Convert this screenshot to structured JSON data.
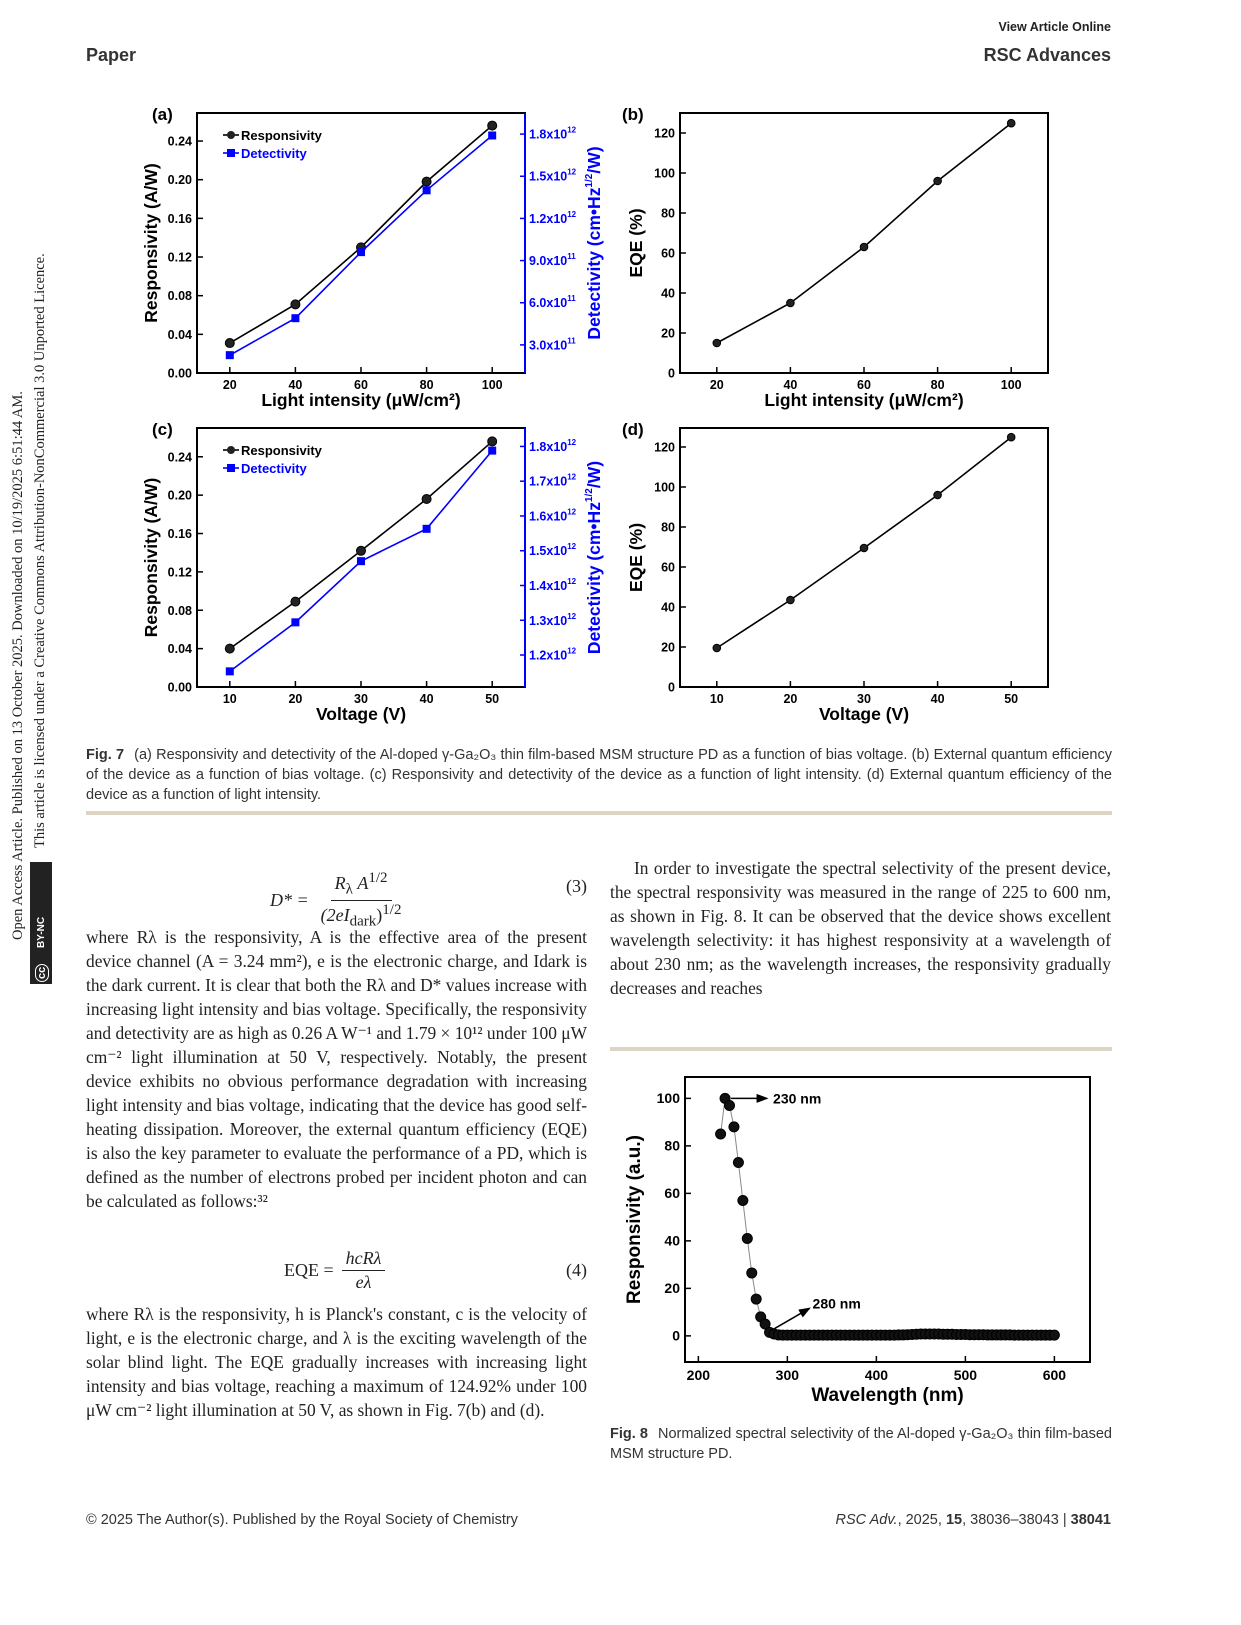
{
  "header": {
    "view_online": "View Article Online",
    "section": "Paper",
    "journal": "RSC Advances"
  },
  "sidebar": {
    "line1": "Open Access Article. Published on 13 October 2025. Downloaded on 10/19/2025 6:51:44 AM.",
    "line2": "This article is licensed under a Creative Commons Attribution-NonCommercial 3.0 Unported Licence.",
    "badge_cc": "cc",
    "badge_text": "BY-NC"
  },
  "colors": {
    "responsivity": "#000000",
    "detectivity": "#0000ff",
    "rule": "#dcd5c3"
  },
  "chart_data": [
    {
      "id": "a",
      "panel_label": "(a)",
      "type": "line",
      "x": [
        20,
        40,
        60,
        80,
        100
      ],
      "xlim": [
        10,
        110
      ],
      "xticks": [
        "20",
        "40",
        "60",
        "80",
        "100"
      ],
      "xtick_values": [
        20,
        40,
        60,
        80,
        100
      ],
      "xlabel": "Light intensity (μW/cm²)",
      "ylabel": "Responsivity (A/W)",
      "ylim": [
        0,
        0.269
      ],
      "yticks": [
        "0.00",
        "0.04",
        "0.08",
        "0.12",
        "0.16",
        "0.20",
        "0.24"
      ],
      "ytick_values": [
        0,
        0.04,
        0.08,
        0.12,
        0.16,
        0.2,
        0.24
      ],
      "y2label": {
        "pre": "Detectivity (cm•Hz",
        "sup": "1/2",
        "post": "/W)"
      },
      "y2lim": [
        100000000000.0,
        1950000000000.0
      ],
      "y2ticks": [
        {
          "base": "3.0x10",
          "exp": "11",
          "value": 300000000000.0
        },
        {
          "base": "6.0x10",
          "exp": "11",
          "value": 600000000000.0
        },
        {
          "base": "9.0x10",
          "exp": "11",
          "value": 900000000000.0
        },
        {
          "base": "1.2x10",
          "exp": "12",
          "value": 1200000000000.0
        },
        {
          "base": "1.5x10",
          "exp": "12",
          "value": 1500000000000.0
        },
        {
          "base": "1.8x10",
          "exp": "12",
          "value": 1800000000000.0
        }
      ],
      "legend": [
        "Responsivity",
        "Detectivity"
      ],
      "series": [
        {
          "name": "Responsivity",
          "axis": "left",
          "values": [
            0.031,
            0.071,
            0.13,
            0.198,
            0.256
          ]
        },
        {
          "name": "Detectivity",
          "axis": "right",
          "values": [
            227000000000.0,
            490000000000.0,
            960000000000.0,
            1400000000000.0,
            1790000000000.0
          ]
        }
      ]
    },
    {
      "id": "b",
      "panel_label": "(b)",
      "type": "line",
      "x": [
        20,
        40,
        60,
        80,
        100
      ],
      "xlim": [
        10,
        110
      ],
      "xticks": [
        "20",
        "40",
        "60",
        "80",
        "100"
      ],
      "xtick_values": [
        20,
        40,
        60,
        80,
        100
      ],
      "xlabel": "Light intensity (μW/cm²)",
      "ylabel": "EQE (%)",
      "ylim": [
        0,
        130
      ],
      "yticks": [
        "0",
        "20",
        "40",
        "60",
        "80",
        "100",
        "120"
      ],
      "ytick_values": [
        0,
        20,
        40,
        60,
        80,
        100,
        120
      ],
      "series": [
        {
          "name": "EQE",
          "axis": "left",
          "values": [
            15,
            35,
            63,
            96,
            124.9
          ]
        }
      ]
    },
    {
      "id": "c",
      "panel_label": "(c)",
      "type": "line",
      "x": [
        10,
        20,
        30,
        40,
        50
      ],
      "xlim": [
        5,
        55
      ],
      "xticks": [
        "10",
        "20",
        "30",
        "40",
        "50"
      ],
      "xtick_values": [
        10,
        20,
        30,
        40,
        50
      ],
      "xlabel": "Voltage (V)",
      "ylabel": "Responsivity (A/W)",
      "ylim": [
        0,
        0.27
      ],
      "yticks": [
        "0.00",
        "0.04",
        "0.08",
        "0.12",
        "0.16",
        "0.20",
        "0.24"
      ],
      "ytick_values": [
        0,
        0.04,
        0.08,
        0.12,
        0.16,
        0.2,
        0.24
      ],
      "y2label": {
        "pre": "Detectivity (cm•Hz",
        "sup": "1/2",
        "post": "/W)"
      },
      "y2lim": [
        1108000000000.0,
        1853000000000.0
      ],
      "y2ticks": [
        {
          "base": "1.2x10",
          "exp": "12",
          "value": 1200000000000.0
        },
        {
          "base": "1.3x10",
          "exp": "12",
          "value": 1300000000000.0
        },
        {
          "base": "1.4x10",
          "exp": "12",
          "value": 1400000000000.0
        },
        {
          "base": "1.5x10",
          "exp": "12",
          "value": 1500000000000.0
        },
        {
          "base": "1.6x10",
          "exp": "12",
          "value": 1600000000000.0
        },
        {
          "base": "1.7x10",
          "exp": "12",
          "value": 1700000000000.0
        },
        {
          "base": "1.8x10",
          "exp": "12",
          "value": 1800000000000.0
        }
      ],
      "legend": [
        "Responsivity",
        "Detectivity"
      ],
      "series": [
        {
          "name": "Responsivity",
          "axis": "left",
          "values": [
            0.04,
            0.089,
            0.142,
            0.196,
            0.256
          ]
        },
        {
          "name": "Detectivity",
          "axis": "right",
          "values": [
            1153000000000.0,
            1294000000000.0,
            1470000000000.0,
            1563000000000.0,
            1788000000000.0
          ]
        }
      ]
    },
    {
      "id": "d",
      "panel_label": "(d)",
      "type": "line",
      "x": [
        10,
        20,
        30,
        40,
        50
      ],
      "xlim": [
        5,
        55
      ],
      "xticks": [
        "10",
        "20",
        "30",
        "40",
        "50"
      ],
      "xtick_values": [
        10,
        20,
        30,
        40,
        50
      ],
      "xlabel": "Voltage (V)",
      "ylabel": "EQE (%)",
      "ylim": [
        0,
        129.5
      ],
      "yticks": [
        "0",
        "20",
        "40",
        "60",
        "80",
        "100",
        "120"
      ],
      "ytick_values": [
        0,
        20,
        40,
        60,
        80,
        100,
        120
      ],
      "series": [
        {
          "name": "EQE",
          "axis": "left",
          "values": [
            19.5,
            43.5,
            69.5,
            96,
            124.9
          ]
        }
      ]
    },
    {
      "id": "fig8",
      "type": "scatter",
      "xlabel": "Wavelength (nm)",
      "ylabel": "Responsivity (a.u.)",
      "xlim": [
        185,
        640
      ],
      "ylim": [
        -11,
        109
      ],
      "xticks": [
        "200",
        "300",
        "400",
        "500",
        "600"
      ],
      "xtick_values": [
        200,
        300,
        400,
        500,
        600
      ],
      "yticks": [
        "0",
        "20",
        "40",
        "60",
        "80",
        "100"
      ],
      "ytick_values": [
        0,
        20,
        40,
        60,
        80,
        100
      ],
      "annotations": [
        {
          "text": "230 nm",
          "x": 230,
          "y": 100
        },
        {
          "text": "280 nm",
          "x": 280,
          "y": 1.5
        }
      ],
      "x": [
        225,
        230,
        235,
        240,
        245,
        250,
        255,
        260,
        265,
        270,
        275,
        280,
        285,
        290,
        295,
        300,
        305,
        310,
        315,
        320,
        325,
        330,
        335,
        340,
        345,
        350,
        355,
        360,
        365,
        370,
        375,
        380,
        385,
        390,
        395,
        400,
        405,
        410,
        415,
        420,
        425,
        430,
        435,
        440,
        445,
        450,
        455,
        460,
        465,
        470,
        475,
        480,
        485,
        490,
        495,
        500,
        505,
        510,
        515,
        520,
        525,
        530,
        535,
        540,
        545,
        550,
        555,
        560,
        565,
        570,
        575,
        580,
        585,
        590,
        595,
        600
      ],
      "y": [
        85,
        100,
        97,
        88,
        73,
        57,
        41,
        26.5,
        15.5,
        8,
        5,
        1.5,
        0.8,
        0.4,
        0.3,
        0.3,
        0.3,
        0.3,
        0.3,
        0.3,
        0.3,
        0.3,
        0.3,
        0.3,
        0.3,
        0.3,
        0.3,
        0.3,
        0.3,
        0.3,
        0.3,
        0.3,
        0.3,
        0.3,
        0.3,
        0.3,
        0.3,
        0.3,
        0.3,
        0.3,
        0.4,
        0.4,
        0.5,
        0.6,
        0.7,
        0.8,
        0.8,
        0.8,
        0.8,
        0.8,
        0.7,
        0.7,
        0.7,
        0.6,
        0.6,
        0.6,
        0.5,
        0.5,
        0.5,
        0.5,
        0.4,
        0.4,
        0.4,
        0.4,
        0.4,
        0.4,
        0.3,
        0.3,
        0.3,
        0.3,
        0.3,
        0.3,
        0.3,
        0.3,
        0.3,
        0.3
      ]
    }
  ],
  "fig7_caption": {
    "label": "Fig. 7",
    "text": "(a) Responsivity and detectivity of the Al-doped γ-Ga₂O₃ thin film-based MSM structure PD as a function of bias voltage. (b) External quantum efficiency of the device as a function of bias voltage. (c) Responsivity and detectivity of the device as a function of light intensity. (d) External quantum efficiency of the device as a function of light intensity."
  },
  "equation3": {
    "lhs": "D* =",
    "num": "Rλ A^1/2",
    "num_main": "R",
    "num_sub": "λ",
    "num_a": " A",
    "num_sup": "1/2",
    "den_main": "(2eI",
    "den_sub": "dark",
    "den_close": ")",
    "den_sup": "1/2",
    "number": "(3)"
  },
  "paragraph1": "where Rλ is the responsivity, A is the effective area of the present device channel (A = 3.24 mm²), e is the electronic charge, and Idark is the dark current. It is clear that both the Rλ and D* values increase with increasing light intensity and bias voltage. Specifically, the responsivity and detectivity are as high as 0.26 A W⁻¹ and 1.79 × 10¹² under 100 μW cm⁻² light illumination at 50 V, respectively. Notably, the present device exhibits no obvious performance degradation with increasing light intensity and bias voltage, indicating that the device has good self-heating dissipation. Moreover, the external quantum efficiency (EQE) is also the key parameter to evaluate the performance of a PD, which is defined as the number of electrons probed per incident photon and can be calculated as follows:³²",
  "equation4": {
    "lhs": "EQE =",
    "num": "hcRλ",
    "den": "eλ",
    "number": "(4)"
  },
  "paragraph2": "where Rλ is the responsivity, h is Planck's constant, c is the velocity of light, e is the electronic charge, and λ is the exciting wavelength of the solar blind light. The EQE gradually increases with increasing light intensity and bias voltage, reaching a maximum of 124.92% under 100 μW cm⁻² light illumination at 50 V, as shown in Fig. 7(b) and (d).",
  "paragraph_right": "In order to investigate the spectral selectivity of the present device, the spectral responsivity was measured in the range of 225 to 600 nm, as shown in Fig. 8. It can be observed that the device shows excellent wavelength selectivity: it has highest responsivity at a wavelength of about 230 nm; as the wavelength increases, the responsivity gradually decreases and reaches",
  "fig8_caption": {
    "label": "Fig. 8",
    "text": "Normalized spectral selectivity of the Al-doped γ-Ga₂O₃ thin film-based MSM structure PD."
  },
  "footer": {
    "left": "© 2025 The Author(s). Published by the Royal Society of Chemistry",
    "right_journal": "RSC Adv.",
    "right_year": ", 2025, ",
    "right_volume": "15",
    "right_pages": ", 38036–38043 | ",
    "right_page": "38041"
  }
}
